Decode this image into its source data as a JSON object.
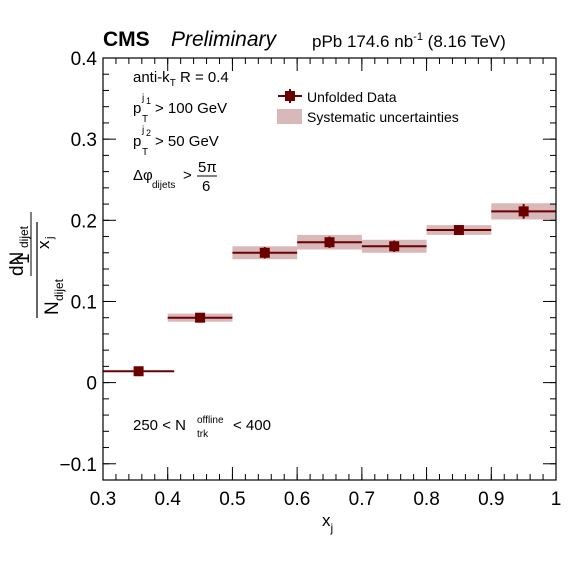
{
  "header": {
    "experiment": "CMS",
    "status": "Preliminary",
    "lumi": "pPb 174.6 nb",
    "lumi_exp": "-1",
    "energy": "(8.16 TeV)"
  },
  "annotations": {
    "jet_algo": "anti-k",
    "jet_algo_sub": "T",
    "jet_radius": "R = 0.4",
    "pt1_p": "p",
    "pt1_sub": "T",
    "pt1_sup": "j",
    "pt1_sup_sub": "1",
    "pt1_cut": "> 100 GeV",
    "pt2_p": "p",
    "pt2_sub": "T",
    "pt2_sup": "j",
    "pt2_sup_sub": "2",
    "pt2_cut": "> 50 GeV",
    "dphi_symbol": "Δφ",
    "dphi_sub": "dijets",
    "dphi_gt": ">",
    "dphi_num": "5π",
    "dphi_den": "6",
    "mult_range_low": "250 < N",
    "mult_sub": "trk",
    "mult_sup": "offline",
    "mult_range_high": "< 400"
  },
  "legend": {
    "data_label": "Unfolded Data",
    "syst_label": "Systematic uncertainties"
  },
  "axes": {
    "xlabel": "x",
    "xlabel_sub": "j",
    "ylabel_one": "1",
    "ylabel_N": "N",
    "ylabel_N_sub": "dijet",
    "ylabel_dN": "dN",
    "ylabel_dN_sub": "dijet",
    "ylabel_x": "x",
    "ylabel_x_sub": "j"
  },
  "colors": {
    "marker": "#6b0000",
    "syst_band": "#d8b8b8",
    "axis": "#000000"
  },
  "chart_data": {
    "type": "scatter",
    "xlim": [
      0.3,
      1.0
    ],
    "ylim": [
      -0.12,
      0.4
    ],
    "xticks": [
      0.3,
      0.4,
      0.5,
      0.6,
      0.7,
      0.8,
      0.9,
      1.0
    ],
    "xtick_labels": [
      "0.3",
      "0.4",
      "0.5",
      "0.6",
      "0.7",
      "0.8",
      "0.9",
      "1"
    ],
    "yticks": [
      -0.1,
      0,
      0.1,
      0.2,
      0.3,
      0.4
    ],
    "ytick_labels": [
      "−0.1",
      "0",
      "0.1",
      "0.2",
      "0.3",
      "0.4"
    ],
    "grid": false,
    "legend_position": "top-right",
    "series": [
      {
        "name": "Unfolded Data",
        "points": [
          {
            "xlow": 0.3,
            "xhigh": 0.41,
            "x": 0.355,
            "y": 0.014,
            "stat": 0.002,
            "syst": 0
          },
          {
            "xlow": 0.4,
            "xhigh": 0.5,
            "x": 0.45,
            "y": 0.08,
            "stat": 0.004,
            "syst": 0.005
          },
          {
            "xlow": 0.5,
            "xhigh": 0.6,
            "x": 0.55,
            "y": 0.16,
            "stat": 0.007,
            "syst": 0.008
          },
          {
            "xlow": 0.6,
            "xhigh": 0.7,
            "x": 0.65,
            "y": 0.173,
            "stat": 0.007,
            "syst": 0.009
          },
          {
            "xlow": 0.7,
            "xhigh": 0.8,
            "x": 0.75,
            "y": 0.168,
            "stat": 0.007,
            "syst": 0.008
          },
          {
            "xlow": 0.8,
            "xhigh": 0.9,
            "x": 0.85,
            "y": 0.188,
            "stat": 0.005,
            "syst": 0.006
          },
          {
            "xlow": 0.9,
            "xhigh": 1.0,
            "x": 0.95,
            "y": 0.211,
            "stat": 0.009,
            "syst": 0.01
          }
        ]
      }
    ]
  }
}
